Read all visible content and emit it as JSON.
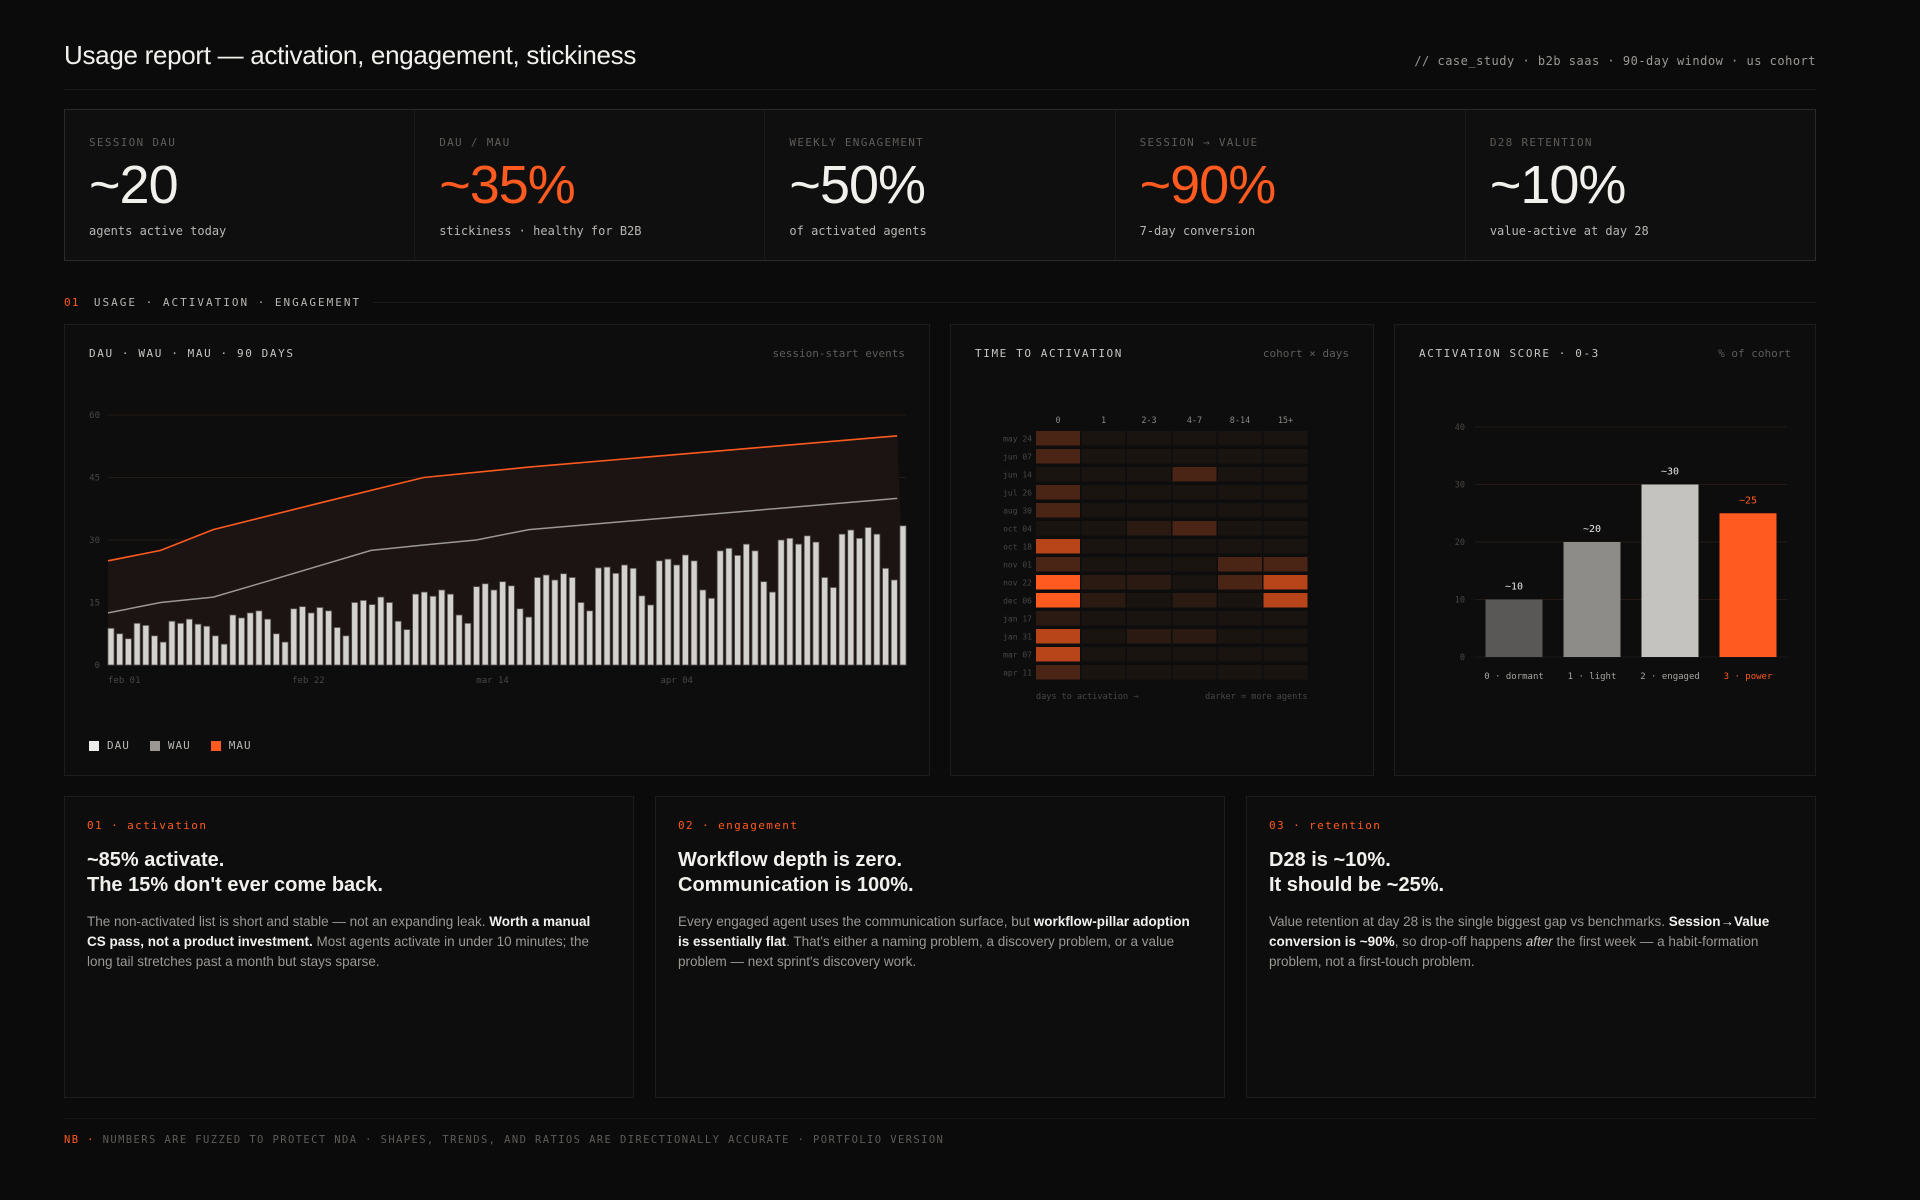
{
  "header": {
    "title": "Usage report — activation, engagement, stickiness",
    "meta": "// case_study · b2b saas · 90-day window · us cohort"
  },
  "kpis": [
    {
      "label": "SESSION DAU",
      "value": "~20",
      "sub": "agents active today",
      "accent": false
    },
    {
      "label": "DAU / MAU",
      "value": "~35%",
      "sub": "stickiness · healthy for B2B",
      "accent": true
    },
    {
      "label": "WEEKLY ENGAGEMENT",
      "value": "~50%",
      "sub": "of activated agents",
      "accent": false
    },
    {
      "label": "SESSION → VALUE",
      "value": "~90%",
      "sub": "7-day conversion",
      "accent": true
    },
    {
      "label": "D28 RETENTION",
      "value": "~10%",
      "sub": "value-active at day 28",
      "accent": false
    }
  ],
  "section": {
    "num": "01",
    "title": "USAGE · ACTIVATION · ENGAGEMENT"
  },
  "colors": {
    "accent": "#ff5a1f",
    "dau": "#d4d2cf",
    "wau": "#9b9894",
    "mau": "#ff5a1f",
    "background": "#0b0b0b",
    "panel": "#0d0d0d"
  },
  "panels": {
    "dau": {
      "title": "DAU · WAU · MAU · 90 DAYS",
      "note": "session-start events"
    },
    "tta": {
      "title": "TIME TO ACTIVATION",
      "note": "cohort × days",
      "x_caption": "days to activation →",
      "legend_caption": "darker = more agents"
    },
    "act": {
      "title": "ACTIVATION SCORE · 0-3",
      "note": "% of cohort"
    }
  },
  "legend": [
    {
      "label": "DAU",
      "color": "#ececea"
    },
    {
      "label": "WAU",
      "color": "#9b9894"
    },
    {
      "label": "MAU",
      "color": "#ff5a1f"
    }
  ],
  "chart_data": [
    {
      "id": "dau_wau_mau",
      "type": "bar",
      "title": "DAU · WAU · MAU · 90 DAYS",
      "subtitle": "session-start events",
      "xlabel": "",
      "ylabel": "",
      "ylim": [
        0,
        60
      ],
      "yticks": [
        0,
        15,
        30,
        45,
        60
      ],
      "xtick_labels": [
        {
          "label": "feb 01",
          "index": 0
        },
        {
          "label": "feb 22",
          "index": 21
        },
        {
          "label": "mar 14",
          "index": 42
        },
        {
          "label": "apr 04",
          "index": 63
        }
      ],
      "x_range": {
        "tick_labels_observed": true,
        "tick_interval_days": 21,
        "bar_count": 91,
        "bar_count_approx": true,
        "note": "Tick labels feb 01 / feb 22 / mar 14 / apr 04 are observed. Bar count is estimated (pixel spacing suggests ~90); the final bar has no tick label, so the exact end date is not visible."
      },
      "grid": true,
      "legend_position": "bottom-left",
      "series": [
        {
          "name": "DAU",
          "kind": "bar",
          "values": [
            8.8,
            7.5,
            6.3,
            10,
            9.5,
            7,
            5.5,
            10.5,
            10,
            11,
            9.8,
            9.3,
            7,
            5,
            12,
            11.3,
            12.5,
            13,
            11,
            7.5,
            5.5,
            13.5,
            14,
            12.5,
            13.8,
            13,
            9,
            7,
            15,
            15.5,
            14.5,
            16.3,
            15,
            10.5,
            8.5,
            17,
            17.5,
            16.5,
            18,
            17,
            12,
            10,
            18.8,
            19.5,
            18,
            20,
            19,
            13.5,
            11.5,
            21,
            21.6,
            20.4,
            21.9,
            21,
            15,
            13,
            23.3,
            23.5,
            22,
            24,
            23.2,
            16.6,
            14.4,
            25,
            25.4,
            24,
            26.4,
            25,
            18,
            16,
            27.4,
            28,
            26.3,
            29,
            27.4,
            20,
            17.5,
            30,
            30.4,
            29,
            31,
            29.5,
            21,
            18.6,
            31.4,
            32.4,
            30.4,
            33,
            31.4,
            23.2,
            20.4,
            33.4
          ]
        },
        {
          "name": "WAU",
          "kind": "line",
          "points": [
            [
              0,
              12.5
            ],
            [
              6,
              15
            ],
            [
              12,
              16.3
            ],
            [
              18,
              20
            ],
            [
              30,
              27.5
            ],
            [
              36,
              28.8
            ],
            [
              42,
              30
            ],
            [
              48,
              32.5
            ],
            [
              90,
              40
            ]
          ]
        },
        {
          "name": "MAU",
          "kind": "area-line",
          "points": [
            [
              0,
              25
            ],
            [
              6,
              27.5
            ],
            [
              12,
              32.5
            ],
            [
              24,
              38.8
            ],
            [
              36,
              45
            ],
            [
              48,
              47.5
            ],
            [
              90,
              55
            ]
          ]
        }
      ]
    },
    {
      "id": "time_to_activation",
      "type": "heatmap",
      "title": "TIME TO ACTIVATION",
      "subtitle": "cohort × days",
      "xlabel": "days to activation →",
      "legend_caption": "darker = more agents",
      "columns": [
        "0",
        "1",
        "2-3",
        "4-7",
        "8-14",
        "15+"
      ],
      "rows": [
        "may 24",
        "jun 07",
        "jun 14",
        "jul 26",
        "aug 30",
        "oct 04",
        "oct 18",
        "nov 01",
        "nov 22",
        "dec 06",
        "jan 17",
        "jan 31",
        "mar 07",
        "apr 11"
      ],
      "intensity_scale": [
        0,
        4
      ],
      "values": [
        [
          2,
          0,
          0,
          0,
          0,
          0
        ],
        [
          2,
          0,
          0,
          0,
          0,
          0
        ],
        [
          0,
          0,
          0,
          2,
          0,
          0
        ],
        [
          2,
          0,
          0,
          0,
          0,
          0
        ],
        [
          2,
          0,
          0,
          0,
          0,
          0
        ],
        [
          0,
          0,
          1,
          2,
          0,
          0
        ],
        [
          3,
          0,
          0,
          0,
          0,
          0
        ],
        [
          2,
          0,
          0,
          0,
          2,
          2
        ],
        [
          4,
          1,
          1,
          0,
          2,
          3
        ],
        [
          4,
          1,
          0,
          1,
          0,
          3
        ],
        [
          1,
          0,
          0,
          0,
          0,
          0
        ],
        [
          3,
          0,
          1,
          1,
          0,
          0
        ],
        [
          3,
          0,
          0,
          0,
          0,
          0
        ],
        [
          2,
          0,
          0,
          0,
          0,
          0
        ]
      ]
    },
    {
      "id": "activation_score",
      "type": "bar",
      "title": "ACTIVATION SCORE · 0-3",
      "subtitle": "% of cohort",
      "categories": [
        "0 · dormant",
        "1 · light",
        "2 · engaged",
        "3 · power"
      ],
      "values": [
        10,
        20,
        30,
        25
      ],
      "data_labels": [
        "~10",
        "~20",
        "~30",
        "~25"
      ],
      "colors": [
        "#5a5856",
        "#8e8c88",
        "#c4c3c0",
        "#ff5a1f"
      ],
      "highlight_index": 3,
      "ylim": [
        0,
        40
      ],
      "yticks": [
        0,
        10,
        20,
        30,
        40
      ],
      "grid": true
    }
  ],
  "insights": [
    {
      "tag": "01 · activation",
      "head1": "~85% activate.",
      "head2": "The 15% don't ever come back.",
      "body": [
        {
          "t": "The non-activated list is short and stable — not an expanding leak. "
        },
        {
          "t": "Worth a manual CS pass, not a product investment.",
          "b": true
        },
        {
          "t": " Most agents activate in under 10 minutes; the long tail stretches past a month but stays sparse."
        }
      ]
    },
    {
      "tag": "02 · engagement",
      "head1": "Workflow depth is zero.",
      "head2": "Communication is 100%.",
      "body": [
        {
          "t": "Every engaged agent uses the communication surface, but "
        },
        {
          "t": "workflow-pillar adoption is essentially flat",
          "b": true
        },
        {
          "t": ". That's either a naming problem, a discovery problem, or a value problem — next sprint's discovery work."
        }
      ]
    },
    {
      "tag": "03 · retention",
      "head1": "D28 is ~10%.",
      "head2": "It should be ~25%.",
      "body": [
        {
          "t": "Value retention at day 28 is the single biggest gap vs benchmarks. "
        },
        {
          "t": "Session→Value conversion is ~90%",
          "b": true
        },
        {
          "t": ", so drop-off happens "
        },
        {
          "t": "after",
          "i": true
        },
        {
          "t": " the first week — a habit-formation problem, not a first-touch problem."
        }
      ]
    }
  ],
  "footer": {
    "nb": "NB ·",
    "text": "NUMBERS ARE FUZZED TO PROTECT NDA · SHAPES, TRENDS, AND RATIOS ARE DIRECTIONALLY ACCURATE · PORTFOLIO VERSION"
  }
}
